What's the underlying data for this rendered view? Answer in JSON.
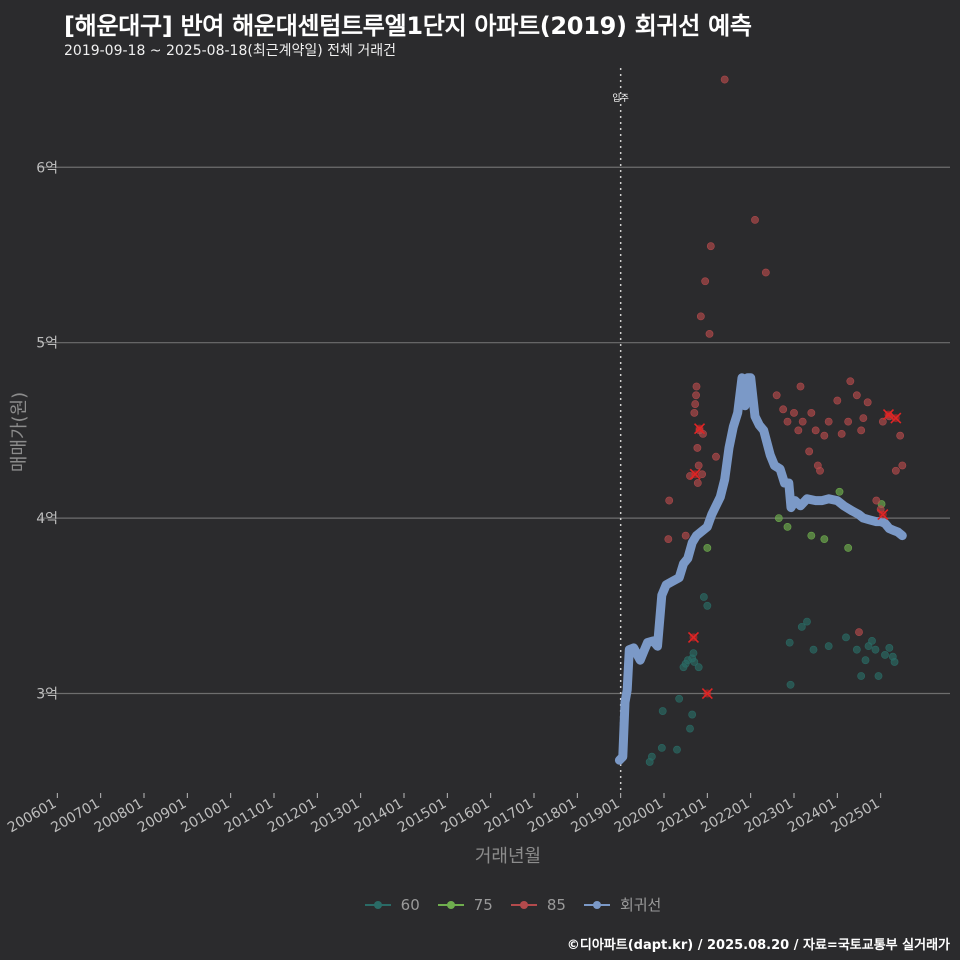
{
  "title": "[해운대구] 반여 해운대센텀트루엘1단지 아파트(2019) 회귀선 예측",
  "subtitle": "2019-09-18 ~ 2025-08-18(최근계약일) 전체 거래건",
  "caption": "©디아파트(dapt.kr) / 2025.08.20 / 자료=국토교통부 실거래가",
  "colors": {
    "background": "#2b2b2d",
    "grid": "#6e6e6e",
    "s60": "#2a6b66",
    "s75": "#6fae4e",
    "s85": "#b34a4c",
    "regression": "#7b99c7",
    "cancel_mark": "#e02424"
  },
  "chart_data": {
    "type": "scatter",
    "title": "[해운대구] 반여 해운대센텀트루엘1단지 아파트(2019) 회귀선 예측",
    "xlabel": "거래년월",
    "ylabel": "매매가(원)",
    "xlim": [
      2005.6,
      2026.6
    ],
    "ylim": [
      2.45,
      6.6
    ],
    "y_unit": "억",
    "x_ticks": [
      {
        "x": 2006.0,
        "label": "200601"
      },
      {
        "x": 2007.0,
        "label": "200701"
      },
      {
        "x": 2008.0,
        "label": "200801"
      },
      {
        "x": 2009.0,
        "label": "200901"
      },
      {
        "x": 2010.0,
        "label": "201001"
      },
      {
        "x": 2011.0,
        "label": "201101"
      },
      {
        "x": 2012.0,
        "label": "201201"
      },
      {
        "x": 2013.0,
        "label": "201301"
      },
      {
        "x": 2014.0,
        "label": "201401"
      },
      {
        "x": 2015.0,
        "label": "201501"
      },
      {
        "x": 2016.0,
        "label": "201601"
      },
      {
        "x": 2017.0,
        "label": "201701"
      },
      {
        "x": 2018.0,
        "label": "201801"
      },
      {
        "x": 2019.0,
        "label": "201901"
      },
      {
        "x": 2020.0,
        "label": "202001"
      },
      {
        "x": 2021.0,
        "label": "202101"
      },
      {
        "x": 2022.0,
        "label": "202201"
      },
      {
        "x": 2023.0,
        "label": "202301"
      },
      {
        "x": 2024.0,
        "label": "202401"
      },
      {
        "x": 2025.0,
        "label": "202501"
      }
    ],
    "y_ticks": [
      {
        "y": 3,
        "label": "3억"
      },
      {
        "y": 4,
        "label": "4억"
      },
      {
        "y": 5,
        "label": "5억"
      },
      {
        "y": 6,
        "label": "6억"
      }
    ],
    "annotation": {
      "x": 2019.0,
      "label": "입주"
    },
    "legend": [
      {
        "key": "60",
        "label": "60"
      },
      {
        "key": "75",
        "label": "75"
      },
      {
        "key": "85",
        "label": "85"
      },
      {
        "key": "regression",
        "label": "회귀선"
      }
    ],
    "series": [
      {
        "name": "60",
        "points": [
          [
            2019.67,
            2.61
          ],
          [
            2019.72,
            2.64
          ],
          [
            2019.95,
            2.69
          ],
          [
            2019.97,
            2.9
          ],
          [
            2020.3,
            2.68
          ],
          [
            2020.35,
            2.97
          ],
          [
            2020.45,
            3.15
          ],
          [
            2020.5,
            3.17
          ],
          [
            2020.55,
            3.19
          ],
          [
            2020.6,
            2.8
          ],
          [
            2020.65,
            2.88
          ],
          [
            2020.65,
            3.2
          ],
          [
            2020.68,
            3.23
          ],
          [
            2020.7,
            3.18
          ],
          [
            2020.8,
            3.15
          ],
          [
            2020.92,
            3.55
          ],
          [
            2021.0,
            3.5
          ],
          [
            2022.92,
            3.05
          ],
          [
            2022.9,
            3.29
          ],
          [
            2023.18,
            3.38
          ],
          [
            2023.3,
            3.41
          ],
          [
            2023.45,
            3.25
          ],
          [
            2023.8,
            3.27
          ],
          [
            2024.2,
            3.32
          ],
          [
            2024.45,
            3.25
          ],
          [
            2024.55,
            3.1
          ],
          [
            2024.65,
            3.19
          ],
          [
            2024.72,
            3.27
          ],
          [
            2024.8,
            3.3
          ],
          [
            2024.88,
            3.25
          ],
          [
            2024.95,
            3.1
          ],
          [
            2025.1,
            3.22
          ],
          [
            2025.2,
            3.26
          ],
          [
            2025.32,
            3.18
          ],
          [
            2025.28,
            3.21
          ]
        ]
      },
      {
        "name": "75",
        "points": [
          [
            2021.0,
            3.83
          ],
          [
            2022.65,
            4.0
          ],
          [
            2022.85,
            3.95
          ],
          [
            2023.4,
            3.9
          ],
          [
            2023.7,
            3.88
          ],
          [
            2024.05,
            4.15
          ],
          [
            2024.25,
            3.83
          ],
          [
            2025.02,
            4.08
          ]
        ]
      },
      {
        "name": "85",
        "points": [
          [
            2020.1,
            3.88
          ],
          [
            2020.12,
            4.1
          ],
          [
            2020.5,
            3.9
          ],
          [
            2020.6,
            4.24
          ],
          [
            2020.7,
            4.6
          ],
          [
            2020.72,
            4.65
          ],
          [
            2020.74,
            4.7
          ],
          [
            2020.75,
            4.75
          ],
          [
            2020.77,
            4.4
          ],
          [
            2020.78,
            4.2
          ],
          [
            2020.8,
            4.3
          ],
          [
            2020.82,
            4.5
          ],
          [
            2020.85,
            5.15
          ],
          [
            2020.9,
            4.48
          ],
          [
            2020.88,
            4.25
          ],
          [
            2020.95,
            5.35
          ],
          [
            2021.05,
            5.05
          ],
          [
            2021.08,
            5.55
          ],
          [
            2021.2,
            4.35
          ],
          [
            2021.4,
            6.5
          ],
          [
            2021.9,
            4.75
          ],
          [
            2022.1,
            5.7
          ],
          [
            2022.35,
            5.4
          ],
          [
            2022.6,
            4.7
          ],
          [
            2022.75,
            4.62
          ],
          [
            2022.85,
            4.55
          ],
          [
            2023.0,
            4.6
          ],
          [
            2023.1,
            4.5
          ],
          [
            2023.15,
            4.75
          ],
          [
            2023.2,
            4.55
          ],
          [
            2023.35,
            4.38
          ],
          [
            2023.4,
            4.6
          ],
          [
            2023.5,
            4.5
          ],
          [
            2023.55,
            4.3
          ],
          [
            2023.6,
            4.27
          ],
          [
            2023.7,
            4.47
          ],
          [
            2023.8,
            4.55
          ],
          [
            2024.0,
            4.67
          ],
          [
            2024.1,
            4.48
          ],
          [
            2024.25,
            4.55
          ],
          [
            2024.3,
            4.78
          ],
          [
            2024.45,
            4.7
          ],
          [
            2024.55,
            4.5
          ],
          [
            2024.6,
            4.57
          ],
          [
            2024.7,
            4.66
          ],
          [
            2024.5,
            3.35
          ],
          [
            2024.9,
            4.1
          ],
          [
            2025.0,
            4.05
          ],
          [
            2025.05,
            4.55
          ],
          [
            2025.2,
            4.58
          ],
          [
            2025.35,
            4.27
          ],
          [
            2025.45,
            4.47
          ],
          [
            2025.5,
            4.3
          ]
        ]
      },
      {
        "name": "cancelled",
        "points": [
          [
            2020.68,
            3.32
          ],
          [
            2020.72,
            4.25
          ],
          [
            2020.82,
            4.51
          ],
          [
            2021.0,
            3.0
          ],
          [
            2025.05,
            4.02
          ],
          [
            2025.18,
            4.59
          ],
          [
            2025.35,
            4.57
          ]
        ]
      },
      {
        "name": "회귀선",
        "points": [
          [
            2018.97,
            2.62
          ],
          [
            2019.05,
            2.64
          ],
          [
            2019.1,
            2.95
          ],
          [
            2019.15,
            3.02
          ],
          [
            2019.2,
            3.25
          ],
          [
            2019.3,
            3.26
          ],
          [
            2019.45,
            3.19
          ],
          [
            2019.55,
            3.25
          ],
          [
            2019.62,
            3.29
          ],
          [
            2019.75,
            3.3
          ],
          [
            2019.85,
            3.27
          ],
          [
            2019.95,
            3.56
          ],
          [
            2020.05,
            3.62
          ],
          [
            2020.2,
            3.64
          ],
          [
            2020.35,
            3.66
          ],
          [
            2020.45,
            3.74
          ],
          [
            2020.55,
            3.77
          ],
          [
            2020.65,
            3.86
          ],
          [
            2020.75,
            3.9
          ],
          [
            2020.85,
            3.92
          ],
          [
            2021.0,
            3.95
          ],
          [
            2021.1,
            4.02
          ],
          [
            2021.3,
            4.12
          ],
          [
            2021.4,
            4.22
          ],
          [
            2021.5,
            4.4
          ],
          [
            2021.6,
            4.52
          ],
          [
            2021.7,
            4.6
          ],
          [
            2021.8,
            4.8
          ],
          [
            2021.87,
            4.64
          ],
          [
            2021.93,
            4.8
          ],
          [
            2022.0,
            4.8
          ],
          [
            2022.1,
            4.58
          ],
          [
            2022.2,
            4.53
          ],
          [
            2022.3,
            4.5
          ],
          [
            2022.45,
            4.36
          ],
          [
            2022.55,
            4.3
          ],
          [
            2022.68,
            4.28
          ],
          [
            2022.78,
            4.2
          ],
          [
            2022.88,
            4.2
          ],
          [
            2022.93,
            4.06
          ],
          [
            2023.02,
            4.1
          ],
          [
            2023.15,
            4.07
          ],
          [
            2023.3,
            4.11
          ],
          [
            2023.5,
            4.1
          ],
          [
            2023.65,
            4.1
          ],
          [
            2023.8,
            4.11
          ],
          [
            2024.0,
            4.1
          ],
          [
            2024.15,
            4.07
          ],
          [
            2024.35,
            4.04
          ],
          [
            2024.5,
            4.02
          ],
          [
            2024.6,
            4.0
          ],
          [
            2024.75,
            3.99
          ],
          [
            2024.9,
            3.98
          ],
          [
            2025.0,
            3.98
          ],
          [
            2025.1,
            3.97
          ],
          [
            2025.2,
            3.94
          ],
          [
            2025.3,
            3.93
          ],
          [
            2025.4,
            3.92
          ],
          [
            2025.5,
            3.9
          ]
        ]
      }
    ]
  }
}
